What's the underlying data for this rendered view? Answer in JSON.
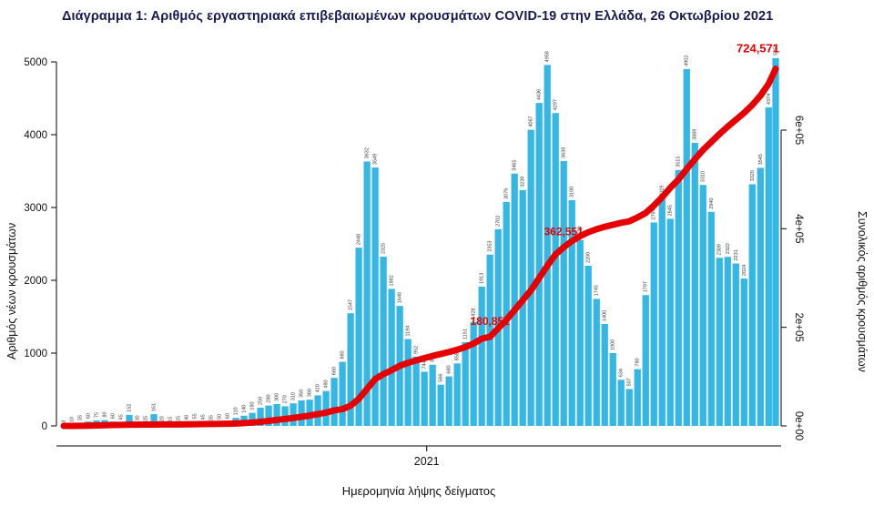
{
  "title": "Διάγραμμα 1: Αριθμός εργαστηριακά επιβεβαιωμένων κρουσμάτων COVID-19 στην Ελλάδα, 26 Οκτωβρίου 2021",
  "chart_data": {
    "type": "bar",
    "title": "Διάγραμμα 1: Αριθμός εργαστηριακά επιβεβαιωμένων κρουσμάτων COVID-19 στην Ελλάδα, 26 Οκτωβρίου 2021",
    "xlabel": "Ημερομηνία λήψης δείγματος",
    "ylabel_left": "Αριθμός νέων κρουσμάτων",
    "ylabel_right": "Συνολικός αριθμός κρουσμάτων",
    "ylim_left": [
      0,
      5000
    ],
    "ylim_right": [
      0,
      620000
    ],
    "yticks_left": [
      0,
      1000,
      2000,
      3000,
      4000,
      5000
    ],
    "yticks_right": [
      {
        "label": "0e+00",
        "value": 0
      },
      {
        "label": "2e+05",
        "value": 200000
      },
      {
        "label": "4e+05",
        "value": 400000
      },
      {
        "label": "6e+05",
        "value": 600000
      }
    ],
    "x_ticks": [
      {
        "label": "2021",
        "date": "2021-01-01"
      }
    ],
    "grid": false,
    "legend": "none",
    "colors": {
      "bar": "#35b7e5",
      "line": "#e60000",
      "annotation": "#e60000",
      "bar_label": "#3a3a3a"
    },
    "x": [
      "2020-02-26",
      "2020-03-04",
      "2020-03-11",
      "2020-03-18",
      "2020-03-25",
      "2020-04-01",
      "2020-04-08",
      "2020-04-15",
      "2020-04-22",
      "2020-04-29",
      "2020-05-06",
      "2020-05-13",
      "2020-05-20",
      "2020-05-27",
      "2020-06-03",
      "2020-06-10",
      "2020-06-17",
      "2020-06-24",
      "2020-07-01",
      "2020-07-08",
      "2020-07-15",
      "2020-07-22",
      "2020-07-29",
      "2020-08-05",
      "2020-08-12",
      "2020-08-19",
      "2020-08-26",
      "2020-09-02",
      "2020-09-09",
      "2020-09-16",
      "2020-09-23",
      "2020-09-30",
      "2020-10-07",
      "2020-10-14",
      "2020-10-21",
      "2020-10-28",
      "2020-11-04",
      "2020-11-11",
      "2020-11-18",
      "2020-11-25",
      "2020-12-02",
      "2020-12-09",
      "2020-12-16",
      "2020-12-23",
      "2020-12-30",
      "2021-01-06",
      "2021-01-13",
      "2021-01-20",
      "2021-01-27",
      "2021-02-03",
      "2021-02-10",
      "2021-02-17",
      "2021-02-24",
      "2021-03-03",
      "2021-03-10",
      "2021-03-17",
      "2021-03-24",
      "2021-03-31",
      "2021-04-07",
      "2021-04-14",
      "2021-04-21",
      "2021-04-28",
      "2021-05-05",
      "2021-05-12",
      "2021-05-19",
      "2021-05-26",
      "2021-06-02",
      "2021-06-09",
      "2021-06-16",
      "2021-06-23",
      "2021-06-30",
      "2021-07-07",
      "2021-07-14",
      "2021-07-21",
      "2021-07-28",
      "2021-08-04",
      "2021-08-11",
      "2021-08-18",
      "2021-08-25",
      "2021-09-01",
      "2021-09-08",
      "2021-09-15",
      "2021-09-22",
      "2021-09-29",
      "2021-10-06",
      "2021-10-13",
      "2021-10-20",
      "2021-10-26"
    ],
    "series": [
      {
        "name": "daily_new_cases",
        "type": "bar",
        "axis": "left",
        "values": [
          3,
          10,
          35,
          60,
          75,
          80,
          60,
          45,
          152,
          30,
          25,
          161,
          20,
          15,
          25,
          40,
          55,
          45,
          35,
          50,
          60,
          110,
          140,
          180,
          250,
          280,
          300,
          270,
          310,
          350,
          360,
          420,
          480,
          660,
          880,
          1547,
          2448,
          3632,
          3549,
          2325,
          1882,
          1648,
          1194,
          952,
          744,
          841,
          566,
          680,
          858,
          1151,
          1428,
          1913,
          2353,
          2702,
          3076,
          3465,
          3239,
          4067,
          4436,
          4958,
          4297,
          3638,
          3100,
          2554,
          2200,
          1745,
          1400,
          1000,
          634,
          507,
          780,
          1797,
          2794,
          3119,
          2845,
          3515,
          4902,
          3888,
          3310,
          2940,
          2309,
          2322,
          2231,
          2024,
          3320,
          3545,
          4374,
          5052
        ]
      },
      {
        "name": "cumulative_cases",
        "type": "line",
        "axis": "right",
        "values": [
          3,
          45,
          190,
          480,
          900,
          1415,
          1850,
          2150,
          2450,
          2590,
          2700,
          2850,
          2900,
          2950,
          3050,
          3250,
          3450,
          3650,
          3850,
          4100,
          4400,
          4900,
          5700,
          6800,
          8300,
          10100,
          12200,
          14100,
          16200,
          18500,
          21000,
          23800,
          27000,
          31500,
          34000,
          41000,
          55000,
          75000,
          95000,
          105000,
          113000,
          122000,
          128000,
          133000,
          137500,
          142000,
          146000,
          150000,
          154500,
          160000,
          167000,
          177000,
          180852,
          198000,
          215000,
          235000,
          255000,
          275000,
          300000,
          325000,
          348000,
          362551,
          375000,
          385000,
          393000,
          399000,
          404000,
          408000,
          412000,
          415000,
          422963,
          432000,
          447000,
          464000,
          483000,
          500000,
          521000,
          541000,
          560000,
          576000,
          592000,
          607000,
          621000,
          635000,
          651000,
          670000,
          694000,
          724571
        ]
      }
    ],
    "annotations": [
      {
        "text": "180,852",
        "date": "2021-02-24"
      },
      {
        "text": "362,551",
        "date": "2021-04-28"
      },
      {
        "text": "724,571",
        "date": "2021-10-26"
      }
    ]
  }
}
